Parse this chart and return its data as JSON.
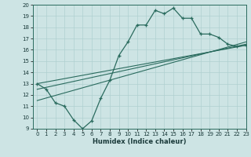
{
  "xlabel": "Humidex (Indice chaleur)",
  "ylabel": "",
  "xlim": [
    -0.5,
    23
  ],
  "ylim": [
    9,
    20
  ],
  "xticks": [
    0,
    1,
    2,
    3,
    4,
    5,
    6,
    7,
    8,
    9,
    10,
    11,
    12,
    13,
    14,
    15,
    16,
    17,
    18,
    19,
    20,
    21,
    22,
    23
  ],
  "yticks": [
    9,
    10,
    11,
    12,
    13,
    14,
    15,
    16,
    17,
    18,
    19,
    20
  ],
  "bg_color": "#cde4e4",
  "line_color": "#2a6b5e",
  "line1_x": [
    0,
    1,
    2,
    3,
    4,
    5,
    6,
    7,
    8,
    9,
    10,
    11,
    12,
    13,
    14,
    15,
    16,
    17,
    18,
    19,
    20,
    21,
    22,
    23
  ],
  "line1_y": [
    13.0,
    12.5,
    11.3,
    11.0,
    9.8,
    9.0,
    9.7,
    11.7,
    13.3,
    15.5,
    16.7,
    18.2,
    18.2,
    19.5,
    19.2,
    19.7,
    18.8,
    18.8,
    17.4,
    17.4,
    17.1,
    16.5,
    16.3,
    16.4
  ],
  "line2_x": [
    0,
    23
  ],
  "line2_y": [
    12.5,
    16.5
  ],
  "line3_x": [
    0,
    23
  ],
  "line3_y": [
    13.0,
    16.4
  ],
  "line4_x": [
    0,
    23
  ],
  "line4_y": [
    11.5,
    16.7
  ]
}
